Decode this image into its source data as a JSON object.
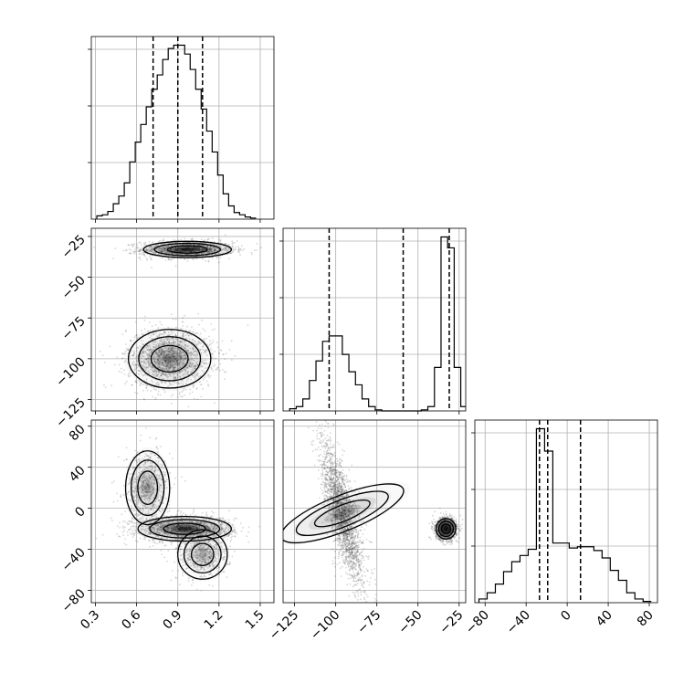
{
  "chart_data": {
    "type": "corner",
    "params": [
      {
        "id": "p0",
        "xlim": [
          0.27,
          1.6
        ],
        "ticks": [
          0.3,
          0.6,
          0.9,
          1.2,
          1.5
        ],
        "tick_labels": [
          "0.3",
          "0.6",
          "0.9",
          "1.2",
          "1.5"
        ],
        "quantiles": [
          0.72,
          0.9,
          1.08
        ],
        "hist": {
          "edges": [
            0.31,
            0.35,
            0.39,
            0.43,
            0.47,
            0.51,
            0.55,
            0.59,
            0.63,
            0.67,
            0.71,
            0.75,
            0.79,
            0.83,
            0.87,
            0.91,
            0.95,
            0.99,
            1.03,
            1.07,
            1.11,
            1.15,
            1.19,
            1.23,
            1.27,
            1.31,
            1.35,
            1.39,
            1.43,
            1.47
          ],
          "counts": [
            3,
            4,
            7,
            14,
            21,
            33,
            52,
            70,
            86,
            102,
            118,
            131,
            145,
            155,
            158,
            158,
            150,
            136,
            118,
            100,
            80,
            61,
            40,
            23,
            12,
            6,
            4,
            2,
            1
          ]
        }
      },
      {
        "id": "p1",
        "xlim": [
          -132,
          -21
        ],
        "ticks": [
          -125,
          -100,
          -75,
          -50,
          -25
        ],
        "tick_labels": [
          "−125",
          "−100",
          "−75",
          "−50",
          "−25"
        ],
        "quantiles": [
          -104,
          -59,
          -31
        ],
        "hist": {
          "edges": [
            -128,
            -124,
            -120,
            -116,
            -112,
            -108,
            -104,
            -100,
            -96,
            -92,
            -88,
            -84,
            -80,
            -76,
            -72,
            -68,
            -64,
            -60,
            -56,
            -52,
            -48,
            -44,
            -40,
            -36,
            -32,
            -28,
            -24,
            -20
          ],
          "counts": [
            2,
            4,
            11,
            28,
            46,
            64,
            69,
            69,
            52,
            36,
            24,
            11,
            4,
            1,
            0,
            0,
            0,
            0,
            0,
            0,
            1,
            4,
            40,
            160,
            150,
            40,
            4
          ]
        }
      },
      {
        "id": "p2",
        "xlim": [
          -90,
          88
        ],
        "ticks": [
          -80,
          -40,
          0,
          40,
          80
        ],
        "tick_labels": [
          "−80",
          "−40",
          "0",
          "40",
          "80"
        ],
        "quantiles": [
          -27,
          -19,
          13
        ],
        "hist": {
          "edges": [
            -86,
            -78,
            -70,
            -62,
            -54,
            -46,
            -38,
            -30,
            -22,
            -14,
            -6,
            2,
            10,
            18,
            26,
            34,
            42,
            50,
            58,
            66,
            74,
            82
          ],
          "counts": [
            3,
            8,
            15,
            25,
            33,
            38,
            43,
            140,
            122,
            48,
            48,
            44,
            45,
            45,
            42,
            36,
            26,
            18,
            8,
            3,
            1
          ]
        }
      }
    ],
    "y_axes": {
      "p1": {
        "ylim": [
          -132,
          -20
        ],
        "ticks": [
          -125,
          -100,
          -75,
          -50,
          -25
        ],
        "tick_labels": [
          "−125",
          "−100",
          "−75",
          "−50",
          "−25"
        ]
      },
      "p2": {
        "ylim": [
          -92,
          86
        ],
        "ticks": [
          -80,
          -40,
          0,
          40,
          80
        ],
        "tick_labels": [
          "−80",
          "−40",
          "0",
          "40",
          "80"
        ]
      }
    },
    "clusters_2d": {
      "p1_vs_p0": [
        {
          "cx": 0.97,
          "cy": -33,
          "sx": 0.16,
          "sy": 2.5,
          "n": 1400,
          "peak": 1.0
        },
        {
          "cx": 0.84,
          "cy": -100,
          "sx": 0.15,
          "sy": 9,
          "n": 1400,
          "peak": 0.45
        }
      ],
      "p2_vs_p0": [
        {
          "cx": 0.95,
          "cy": -20,
          "sx": 0.17,
          "sy": 6,
          "n": 1100,
          "peak": 1.0
        },
        {
          "cx": 0.68,
          "cy": 20,
          "sx": 0.08,
          "sy": 18,
          "n": 600,
          "peak": 0.35
        },
        {
          "cx": 1.08,
          "cy": -45,
          "sx": 0.09,
          "sy": 12,
          "n": 500,
          "peak": 0.3
        }
      ],
      "p2_vs_p1": [
        {
          "cx": -96,
          "cy": -5,
          "sx": 6,
          "sy": 32,
          "n": 2200,
          "peak": 0.35,
          "rho": -0.75
        },
        {
          "cx": -33,
          "cy": -20,
          "sx": 3,
          "sy": 5,
          "n": 1600,
          "peak": 1.0
        }
      ]
    },
    "grid": true
  }
}
